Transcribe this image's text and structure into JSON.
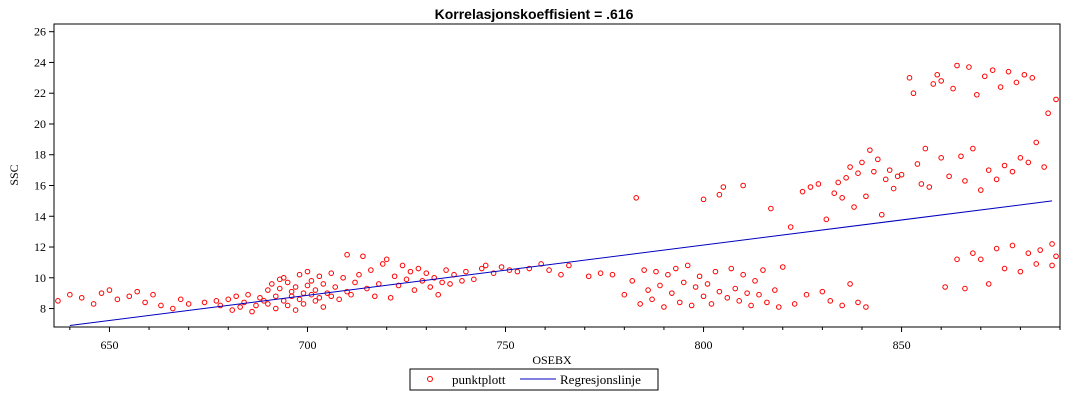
{
  "chart_data": {
    "type": "scatter",
    "title": "Korrelasjonskoeffisient =  .616",
    "xlabel": "OSEBX",
    "ylabel": "SSC",
    "xlim": [
      636,
      890
    ],
    "ylim": [
      6.8,
      26.5
    ],
    "x_ticks": [
      650,
      700,
      750,
      800,
      850
    ],
    "y_ticks": [
      8,
      10,
      12,
      14,
      16,
      18,
      20,
      22,
      24,
      26
    ],
    "grid": false,
    "legend": {
      "placement": "bottom-center",
      "entries": [
        "punktplott",
        "Regresjonslinje"
      ]
    },
    "colors": {
      "points": "#ff0000",
      "line": "#0000c0"
    },
    "regression_line": {
      "x": [
        640,
        888
      ],
      "y": [
        6.9,
        15.0
      ]
    },
    "series": [
      {
        "name": "punktplott",
        "marker": "circle",
        "points": [
          [
            637,
            8.5
          ],
          [
            640,
            8.9
          ],
          [
            643,
            8.7
          ],
          [
            646,
            8.3
          ],
          [
            648,
            9.0
          ],
          [
            650,
            9.2
          ],
          [
            652,
            8.6
          ],
          [
            655,
            8.8
          ],
          [
            657,
            9.1
          ],
          [
            659,
            8.4
          ],
          [
            661,
            8.9
          ],
          [
            663,
            8.2
          ],
          [
            666,
            8.0
          ],
          [
            668,
            8.6
          ],
          [
            670,
            8.3
          ],
          [
            674,
            8.4
          ],
          [
            677,
            8.5
          ],
          [
            678,
            8.2
          ],
          [
            680,
            8.6
          ],
          [
            681,
            7.9
          ],
          [
            682,
            8.8
          ],
          [
            683,
            8.1
          ],
          [
            684,
            8.4
          ],
          [
            685,
            8.9
          ],
          [
            686,
            7.8
          ],
          [
            687,
            8.2
          ],
          [
            688,
            8.7
          ],
          [
            689,
            8.5
          ],
          [
            690,
            9.2
          ],
          [
            690,
            8.3
          ],
          [
            691,
            9.6
          ],
          [
            692,
            8.8
          ],
          [
            692,
            8.0
          ],
          [
            693,
            9.9
          ],
          [
            693,
            9.3
          ],
          [
            694,
            8.5
          ],
          [
            694,
            10.0
          ],
          [
            695,
            9.7
          ],
          [
            695,
            8.2
          ],
          [
            696,
            9.1
          ],
          [
            696,
            8.8
          ],
          [
            697,
            9.4
          ],
          [
            697,
            7.9
          ],
          [
            698,
            10.2
          ],
          [
            698,
            8.6
          ],
          [
            699,
            9.0
          ],
          [
            699,
            8.3
          ],
          [
            700,
            9.5
          ],
          [
            700,
            10.4
          ],
          [
            701,
            8.9
          ],
          [
            701,
            9.8
          ],
          [
            702,
            8.5
          ],
          [
            702,
            9.2
          ],
          [
            703,
            10.1
          ],
          [
            703,
            8.7
          ],
          [
            704,
            9.6
          ],
          [
            704,
            8.1
          ],
          [
            705,
            9.0
          ],
          [
            706,
            10.3
          ],
          [
            706,
            8.8
          ],
          [
            707,
            9.4
          ],
          [
            708,
            8.6
          ],
          [
            709,
            10.0
          ],
          [
            710,
            9.1
          ],
          [
            710,
            11.5
          ],
          [
            711,
            8.9
          ],
          [
            712,
            9.7
          ],
          [
            713,
            10.2
          ],
          [
            714,
            11.4
          ],
          [
            715,
            9.3
          ],
          [
            716,
            10.5
          ],
          [
            717,
            8.8
          ],
          [
            718,
            9.6
          ],
          [
            719,
            10.9
          ],
          [
            720,
            11.2
          ],
          [
            721,
            8.7
          ],
          [
            722,
            10.1
          ],
          [
            723,
            9.5
          ],
          [
            724,
            10.8
          ],
          [
            725,
            9.9
          ],
          [
            726,
            10.4
          ],
          [
            727,
            9.2
          ],
          [
            728,
            10.6
          ],
          [
            729,
            9.8
          ],
          [
            730,
            10.3
          ],
          [
            731,
            9.4
          ],
          [
            732,
            10.0
          ],
          [
            733,
            8.9
          ],
          [
            734,
            9.7
          ],
          [
            735,
            10.5
          ],
          [
            736,
            9.6
          ],
          [
            737,
            10.2
          ],
          [
            739,
            9.8
          ],
          [
            740,
            10.4
          ],
          [
            742,
            9.9
          ],
          [
            744,
            10.6
          ],
          [
            745,
            10.8
          ],
          [
            747,
            10.3
          ],
          [
            749,
            10.7
          ],
          [
            751,
            10.5
          ],
          [
            753,
            10.4
          ],
          [
            756,
            10.6
          ],
          [
            759,
            10.9
          ],
          [
            761,
            10.5
          ],
          [
            764,
            10.2
          ],
          [
            766,
            10.8
          ],
          [
            771,
            10.1
          ],
          [
            774,
            10.3
          ],
          [
            777,
            10.2
          ],
          [
            780,
            8.9
          ],
          [
            782,
            9.8
          ],
          [
            783,
            15.2
          ],
          [
            784,
            8.3
          ],
          [
            785,
            10.5
          ],
          [
            786,
            9.2
          ],
          [
            787,
            8.6
          ],
          [
            788,
            10.4
          ],
          [
            789,
            9.5
          ],
          [
            790,
            8.1
          ],
          [
            791,
            10.2
          ],
          [
            792,
            9.0
          ],
          [
            793,
            10.6
          ],
          [
            794,
            8.4
          ],
          [
            795,
            9.7
          ],
          [
            796,
            10.8
          ],
          [
            797,
            8.2
          ],
          [
            798,
            9.4
          ],
          [
            799,
            10.1
          ],
          [
            800,
            8.8
          ],
          [
            800,
            15.1
          ],
          [
            801,
            9.6
          ],
          [
            802,
            8.3
          ],
          [
            803,
            10.4
          ],
          [
            804,
            9.1
          ],
          [
            804,
            15.4
          ],
          [
            805,
            15.9
          ],
          [
            806,
            8.7
          ],
          [
            807,
            10.6
          ],
          [
            808,
            9.3
          ],
          [
            809,
            8.5
          ],
          [
            810,
            10.2
          ],
          [
            810,
            16.0
          ],
          [
            811,
            9.0
          ],
          [
            812,
            8.2
          ],
          [
            813,
            9.8
          ],
          [
            814,
            8.9
          ],
          [
            815,
            10.5
          ],
          [
            816,
            8.4
          ],
          [
            817,
            14.5
          ],
          [
            818,
            9.2
          ],
          [
            819,
            8.1
          ],
          [
            820,
            10.7
          ],
          [
            822,
            13.3
          ],
          [
            823,
            8.3
          ],
          [
            825,
            15.6
          ],
          [
            826,
            8.9
          ],
          [
            827,
            15.9
          ],
          [
            829,
            16.1
          ],
          [
            830,
            9.1
          ],
          [
            831,
            13.8
          ],
          [
            832,
            8.5
          ],
          [
            833,
            15.5
          ],
          [
            834,
            16.2
          ],
          [
            835,
            8.2
          ],
          [
            835,
            15.2
          ],
          [
            836,
            16.5
          ],
          [
            837,
            9.6
          ],
          [
            837,
            17.2
          ],
          [
            838,
            14.6
          ],
          [
            839,
            8.4
          ],
          [
            839,
            16.8
          ],
          [
            840,
            17.5
          ],
          [
            841,
            15.3
          ],
          [
            841,
            8.1
          ],
          [
            842,
            18.3
          ],
          [
            843,
            16.9
          ],
          [
            844,
            17.7
          ],
          [
            845,
            14.1
          ],
          [
            846,
            16.4
          ],
          [
            847,
            17.0
          ],
          [
            848,
            15.8
          ],
          [
            849,
            16.6
          ],
          [
            850,
            16.7
          ],
          [
            852,
            23.0
          ],
          [
            853,
            22.0
          ],
          [
            854,
            17.4
          ],
          [
            855,
            16.1
          ],
          [
            856,
            18.4
          ],
          [
            857,
            15.9
          ],
          [
            858,
            22.6
          ],
          [
            859,
            23.2
          ],
          [
            860,
            22.8
          ],
          [
            860,
            17.8
          ],
          [
            861,
            9.4
          ],
          [
            862,
            16.6
          ],
          [
            863,
            22.3
          ],
          [
            864,
            23.8
          ],
          [
            864,
            11.2
          ],
          [
            865,
            17.9
          ],
          [
            866,
            9.3
          ],
          [
            866,
            16.3
          ],
          [
            867,
            23.7
          ],
          [
            868,
            11.6
          ],
          [
            868,
            18.4
          ],
          [
            869,
            21.9
          ],
          [
            870,
            15.7
          ],
          [
            870,
            11.2
          ],
          [
            871,
            23.1
          ],
          [
            872,
            9.6
          ],
          [
            872,
            17.0
          ],
          [
            873,
            23.5
          ],
          [
            874,
            11.9
          ],
          [
            874,
            16.4
          ],
          [
            875,
            22.4
          ],
          [
            876,
            10.6
          ],
          [
            876,
            17.3
          ],
          [
            877,
            23.4
          ],
          [
            878,
            12.1
          ],
          [
            878,
            16.9
          ],
          [
            879,
            22.7
          ],
          [
            880,
            10.4
          ],
          [
            880,
            17.8
          ],
          [
            881,
            23.2
          ],
          [
            882,
            11.6
          ],
          [
            882,
            17.5
          ],
          [
            883,
            23.0
          ],
          [
            884,
            10.9
          ],
          [
            884,
            18.8
          ],
          [
            885,
            11.8
          ],
          [
            886,
            17.2
          ],
          [
            887,
            20.7
          ],
          [
            888,
            12.2
          ],
          [
            888,
            10.8
          ],
          [
            889,
            21.6
          ],
          [
            889,
            11.4
          ]
        ]
      },
      {
        "name": "Regresjonslinje",
        "type": "line"
      }
    ]
  }
}
